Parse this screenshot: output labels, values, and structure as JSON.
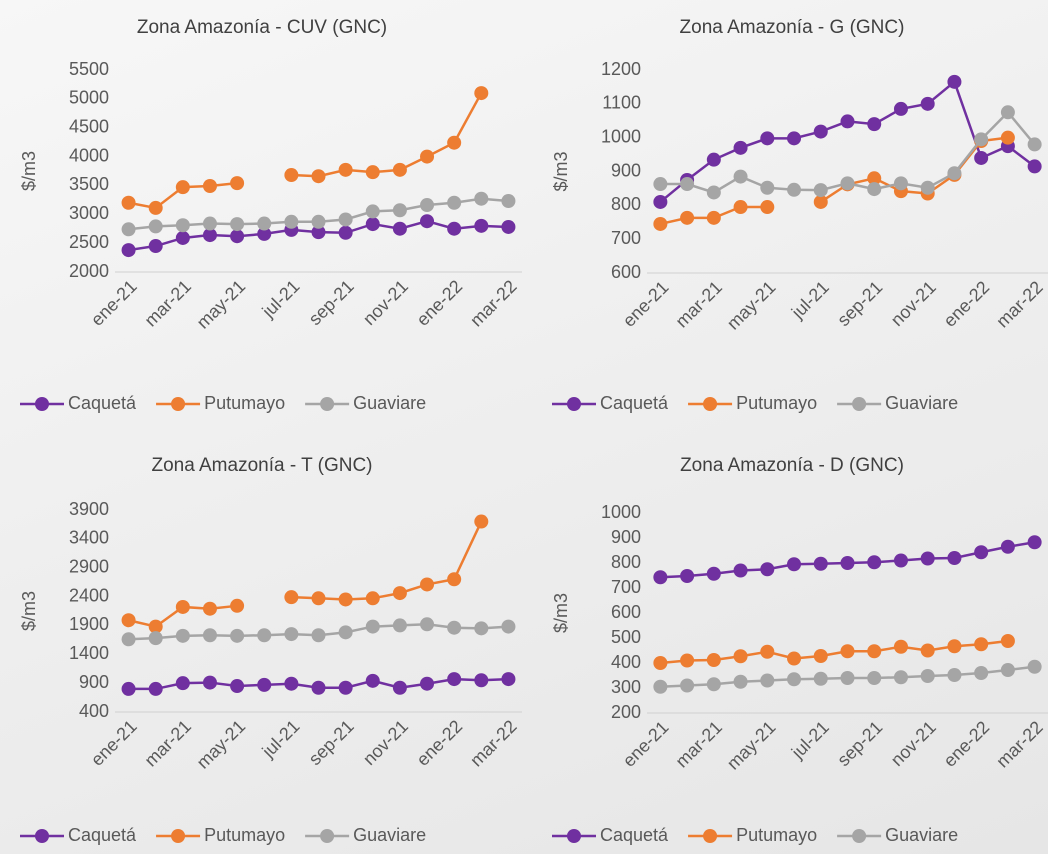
{
  "chart_data": [
    {
      "type": "line",
      "title": "Zona Amazonía  - CUV (GNC)",
      "y_label": "$/m3",
      "categories": [
        "ene-21",
        null,
        "mar-21",
        null,
        "may-21",
        null,
        "jul-21",
        null,
        "sep-21",
        null,
        "nov-21",
        null,
        "ene-22",
        null,
        "mar-22"
      ],
      "series": [
        {
          "name": "Caquetá",
          "color": "#7030a0",
          "values": [
            2380,
            2450,
            2590,
            2640,
            2620,
            2660,
            2730,
            2690,
            2680,
            2830,
            2750,
            2880,
            2750,
            2800,
            2780
          ]
        },
        {
          "name": "Putumayo",
          "color": "#ed7d31",
          "values": [
            3200,
            3110,
            3470,
            3490,
            3540,
            null,
            3680,
            3660,
            3770,
            3730,
            3770,
            4000,
            4240,
            5100,
            null
          ]
        },
        {
          "name": "Guaviare",
          "color": "#a5a5a5",
          "values": [
            2740,
            2790,
            2810,
            2840,
            2830,
            2840,
            2870,
            2870,
            2910,
            3050,
            3070,
            3160,
            3200,
            3270,
            3230
          ]
        }
      ],
      "ylim": [
        2000,
        5500
      ],
      "yticks": [
        2000,
        2500,
        3000,
        3500,
        4000,
        4500,
        5000,
        5500
      ]
    },
    {
      "type": "line",
      "title": "Zona Amazonía - G (GNC)",
      "y_label": "$/m3",
      "categories": [
        "ene-21",
        null,
        "mar-21",
        null,
        "may-21",
        null,
        "jul-21",
        null,
        "sep-21",
        null,
        "nov-21",
        null,
        "ene-22",
        null,
        "mar-22"
      ],
      "series": [
        {
          "name": "Caquetá",
          "color": "#7030a0",
          "values": [
            810,
            875,
            935,
            970,
            998,
            998,
            1018,
            1048,
            1040,
            1085,
            1100,
            1165,
            940,
            975,
            915
          ]
        },
        {
          "name": "Putumayo",
          "color": "#ed7d31",
          "values": [
            745,
            763,
            763,
            795,
            795,
            null,
            810,
            862,
            880,
            842,
            835,
            890,
            990,
            1000,
            null
          ]
        },
        {
          "name": "Guaviare",
          "color": "#a5a5a5",
          "values": [
            863,
            863,
            838,
            885,
            852,
            846,
            845,
            865,
            848,
            865,
            852,
            895,
            995,
            1075,
            980
          ]
        }
      ],
      "ylim": [
        600,
        1200
      ],
      "yticks": [
        600,
        700,
        800,
        900,
        1000,
        1100,
        1200
      ]
    },
    {
      "type": "line",
      "title": "Zona Amazonía - T (GNC)",
      "y_label": "$/m3",
      "categories": [
        "ene-21",
        null,
        "mar-21",
        null,
        "may-21",
        null,
        "jul-21",
        null,
        "sep-21",
        null,
        "nov-21",
        null,
        "ene-22",
        null,
        "mar-22"
      ],
      "series": [
        {
          "name": "Caquetá",
          "color": "#7030a0",
          "values": [
            800,
            800,
            900,
            910,
            850,
            870,
            890,
            820,
            820,
            940,
            820,
            890,
            970,
            950,
            970
          ]
        },
        {
          "name": "Putumayo",
          "color": "#ed7d31",
          "values": [
            1990,
            1880,
            2220,
            2190,
            2240,
            null,
            2390,
            2370,
            2350,
            2370,
            2460,
            2610,
            2700,
            3700,
            null
          ]
        },
        {
          "name": "Guaviare",
          "color": "#a5a5a5",
          "values": [
            1660,
            1680,
            1720,
            1730,
            1720,
            1730,
            1750,
            1730,
            1780,
            1880,
            1900,
            1920,
            1860,
            1850,
            1880
          ]
        }
      ],
      "ylim": [
        400,
        3900
      ],
      "yticks": [
        400,
        900,
        1400,
        1900,
        2400,
        2900,
        3400,
        3900
      ]
    },
    {
      "type": "line",
      "title": "Zona Amazonía - D (GNC)",
      "y_label": "$/m3",
      "categories": [
        "ene-21",
        null,
        "mar-21",
        null,
        "may-21",
        null,
        "jul-21",
        null,
        "sep-21",
        null,
        "nov-21",
        null,
        "ene-22",
        null,
        "mar-22"
      ],
      "series": [
        {
          "name": "Caquetá",
          "color": "#7030a0",
          "values": [
            743,
            748,
            757,
            770,
            775,
            795,
            797,
            800,
            803,
            810,
            818,
            820,
            843,
            865,
            883
          ]
        },
        {
          "name": "Putumayo",
          "color": "#ed7d31",
          "values": [
            400,
            410,
            412,
            427,
            445,
            418,
            428,
            447,
            447,
            465,
            450,
            467,
            475,
            488,
            null
          ]
        },
        {
          "name": "Guaviare",
          "color": "#a5a5a5",
          "values": [
            305,
            310,
            315,
            325,
            330,
            335,
            337,
            340,
            340,
            343,
            348,
            352,
            360,
            372,
            385
          ]
        }
      ],
      "ylim": [
        200,
        1000
      ],
      "yticks": [
        200,
        300,
        400,
        500,
        600,
        700,
        800,
        900,
        1000
      ]
    }
  ]
}
